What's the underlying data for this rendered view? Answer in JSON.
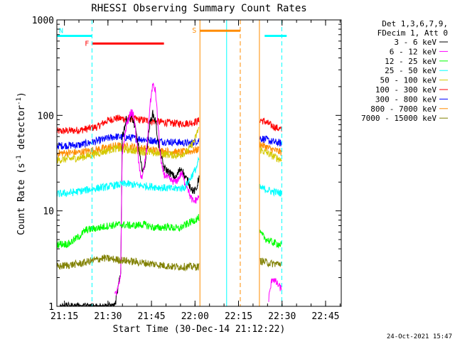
{
  "chart_data": {
    "type": "line",
    "title": "RHESSI Observing Summary Count Rates",
    "xlabel": "Start Time (30-Dec-14 21:12:22)",
    "ylabel": "Count Rate (s",
    "ylabel_sup1": "-1",
    "ylabel_mid": " detector",
    "ylabel_sup2": "-1",
    "ylabel_end": ")",
    "y_scale": "log",
    "ylim": [
      1,
      1000
    ],
    "xlim_minutes": [
      0,
      98
    ],
    "x_ticks": [
      {
        "minute": 2.6,
        "label": "21:15"
      },
      {
        "minute": 17.6,
        "label": "21:30"
      },
      {
        "minute": 32.6,
        "label": "21:45"
      },
      {
        "minute": 47.6,
        "label": "22:00"
      },
      {
        "minute": 62.6,
        "label": "22:15"
      },
      {
        "minute": 77.6,
        "label": "22:30"
      },
      {
        "minute": 92.6,
        "label": "22:45"
      }
    ],
    "y_ticks": [
      {
        "value": 1,
        "label": "1"
      },
      {
        "value": 10,
        "label": "10"
      },
      {
        "value": 100,
        "label": "100"
      },
      {
        "value": 1000,
        "label": "1000"
      }
    ],
    "legend_header": [
      "Det 1,3,6,7,9,",
      "FDecim 1, Att 0"
    ],
    "series": [
      {
        "name": "3 - 6 keV",
        "color": "#000000"
      },
      {
        "name": "6 - 12 keV",
        "color": "#ff00ff"
      },
      {
        "name": "12 - 25 keV",
        "color": "#00ff00"
      },
      {
        "name": "25 - 50 keV",
        "color": "#00ffff"
      },
      {
        "name": "50 - 100 keV",
        "color": "#d4c800"
      },
      {
        "name": "100 - 300 keV",
        "color": "#ff0000"
      },
      {
        "name": "300 - 800 keV",
        "color": "#0000ff"
      },
      {
        "name": "800 - 7000 keV",
        "color": "#ff8c00"
      },
      {
        "name": "7000 - 15000 keV",
        "color": "#808000"
      }
    ],
    "segments": [
      {
        "start": 0,
        "end": 49.3
      },
      {
        "start": 69.8,
        "end": 77.5
      }
    ],
    "series_curves": {
      "100 - 300 keV": [
        [
          [
            0,
            68
          ],
          [
            8,
            70
          ],
          [
            14,
            76
          ],
          [
            17,
            87
          ],
          [
            20,
            93
          ],
          [
            26,
            92
          ],
          [
            34,
            86
          ],
          [
            42,
            82
          ],
          [
            46,
            83
          ],
          [
            49,
            88
          ]
        ],
        [
          [
            70,
            90
          ],
          [
            72,
            85
          ],
          [
            74,
            78
          ],
          [
            77.5,
            70
          ]
        ]
      ],
      "300 - 800 keV": [
        [
          [
            0,
            48
          ],
          [
            8,
            49
          ],
          [
            14,
            54
          ],
          [
            20,
            60
          ],
          [
            26,
            58
          ],
          [
            34,
            54
          ],
          [
            42,
            52
          ],
          [
            46,
            51
          ],
          [
            49,
            55
          ]
        ],
        [
          [
            70,
            58
          ],
          [
            72,
            56
          ],
          [
            74,
            53
          ],
          [
            77.5,
            51
          ]
        ]
      ],
      "800 - 7000 keV": [
        [
          [
            0,
            40
          ],
          [
            8,
            41
          ],
          [
            14,
            44
          ],
          [
            20,
            48
          ],
          [
            26,
            47
          ],
          [
            34,
            43
          ],
          [
            42,
            41
          ],
          [
            46,
            42
          ],
          [
            49,
            44
          ]
        ],
        [
          [
            70,
            50
          ],
          [
            72,
            47
          ],
          [
            74,
            44
          ],
          [
            77.5,
            41
          ]
        ]
      ],
      "50 - 100 keV": [
        [
          [
            0,
            34
          ],
          [
            8,
            36
          ],
          [
            14,
            40
          ],
          [
            20,
            45
          ],
          [
            26,
            43
          ],
          [
            34,
            40
          ],
          [
            42,
            38
          ],
          [
            45,
            42
          ],
          [
            47.5,
            55
          ],
          [
            49,
            76
          ]
        ],
        [
          [
            70,
            44
          ],
          [
            72,
            41
          ],
          [
            74,
            38
          ],
          [
            77.5,
            34
          ]
        ]
      ],
      "3 - 6 keV": [
        [
          [
            1,
            1
          ],
          [
            20,
            1
          ],
          [
            21,
            1.5
          ],
          [
            22,
            2.2
          ],
          [
            22.5,
            60
          ],
          [
            24,
            92
          ],
          [
            26,
            95
          ],
          [
            27,
            72
          ],
          [
            28,
            50
          ],
          [
            29,
            30
          ],
          [
            30,
            26
          ],
          [
            31,
            45
          ],
          [
            32,
            80
          ],
          [
            33,
            105
          ],
          [
            34,
            88
          ],
          [
            35,
            50
          ],
          [
            36,
            36
          ],
          [
            37,
            28
          ],
          [
            39,
            25
          ],
          [
            41,
            22
          ],
          [
            42,
            26
          ],
          [
            43,
            28
          ],
          [
            44,
            23
          ],
          [
            45,
            21
          ],
          [
            46,
            18
          ],
          [
            47,
            16
          ],
          [
            48,
            16.5
          ],
          [
            49,
            23
          ]
        ]
      ],
      "6 - 12 keV": [
        [
          [
            20,
            1.3
          ],
          [
            21,
            1.5
          ],
          [
            22,
            2
          ],
          [
            22.5,
            40
          ],
          [
            24,
            80
          ],
          [
            25.5,
            108
          ],
          [
            26.5,
            100
          ],
          [
            27.5,
            55
          ],
          [
            28.5,
            26
          ],
          [
            29.5,
            22
          ],
          [
            31,
            45
          ],
          [
            32,
            120
          ],
          [
            33,
            210
          ],
          [
            34,
            180
          ],
          [
            35,
            70
          ],
          [
            36,
            30
          ],
          [
            37,
            24
          ],
          [
            39,
            21
          ],
          [
            41,
            20
          ],
          [
            42,
            22
          ],
          [
            43,
            25
          ],
          [
            44,
            20
          ],
          [
            45,
            18
          ],
          [
            46,
            14
          ],
          [
            47,
            12.5
          ],
          [
            48,
            13
          ],
          [
            49,
            14
          ]
        ],
        [
          [
            73,
            1.2
          ],
          [
            74.2,
            2
          ],
          [
            77.5,
            1.5
          ]
        ]
      ],
      "25 - 50 keV": [
        [
          [
            0,
            15
          ],
          [
            5,
            15.5
          ],
          [
            10,
            16.5
          ],
          [
            15,
            17.5
          ],
          [
            17,
            17.8
          ],
          [
            20,
            18.5
          ],
          [
            22.5,
            19
          ],
          [
            24,
            19.2
          ],
          [
            28,
            18.5
          ],
          [
            34,
            17.8
          ],
          [
            40,
            17
          ],
          [
            44,
            17.5
          ],
          [
            46,
            22
          ],
          [
            48,
            28
          ],
          [
            49,
            35
          ]
        ],
        [
          [
            70,
            17.5
          ],
          [
            72,
            16.8
          ],
          [
            74,
            16
          ],
          [
            77.5,
            15.3
          ]
        ]
      ],
      "12 - 25 keV": [
        [
          [
            0,
            4.5
          ],
          [
            4,
            4.5
          ],
          [
            8,
            5.5
          ],
          [
            10,
            6.3
          ],
          [
            14,
            6.6
          ],
          [
            18,
            7
          ],
          [
            22,
            7.2
          ],
          [
            26,
            7
          ],
          [
            30,
            7.2
          ],
          [
            34,
            6.6
          ],
          [
            38,
            6.8
          ],
          [
            42,
            6.5
          ],
          [
            46,
            7.6
          ],
          [
            49,
            8.5
          ]
        ],
        [
          [
            70,
            5.8
          ],
          [
            72,
            5.1
          ],
          [
            74,
            4.7
          ],
          [
            77.5,
            4.4
          ]
        ]
      ],
      "7000 - 15000 keV": [
        [
          [
            0,
            2.6
          ],
          [
            4,
            2.7
          ],
          [
            8,
            2.8
          ],
          [
            12,
            3
          ],
          [
            16,
            3.2
          ],
          [
            20,
            3.1
          ],
          [
            24,
            3
          ],
          [
            28,
            2.9
          ],
          [
            32,
            2.8
          ],
          [
            36,
            2.7
          ],
          [
            40,
            2.6
          ],
          [
            44,
            2.6
          ],
          [
            49,
            2.6
          ]
        ],
        [
          [
            70,
            3
          ],
          [
            72,
            2.9
          ],
          [
            74,
            2.8
          ],
          [
            77.5,
            2.8
          ]
        ]
      ]
    },
    "att_bars": [
      {
        "label": "N",
        "start": 0,
        "end": 12.1,
        "value": 680,
        "color": "#00ffff"
      },
      {
        "label": "F",
        "start": 12.3,
        "end": 36.9,
        "value": 565,
        "color": "#ff0000"
      },
      {
        "label": "S",
        "start": 49.3,
        "end": 63.2,
        "value": 770,
        "color": "#ff8c00"
      },
      {
        "label": "",
        "start": 71.6,
        "end": 79.2,
        "value": 680,
        "color": "#00ffff"
      }
    ],
    "vlines": [
      {
        "minute": 0,
        "color": "#00ffff",
        "dashed": false
      },
      {
        "minute": 12.1,
        "color": "#00ffff",
        "dashed": true
      },
      {
        "minute": 49.3,
        "color": "#ff8c00",
        "dashed": false
      },
      {
        "minute": 58.5,
        "color": "#00ffff",
        "dashed": false
      },
      {
        "minute": 63.2,
        "color": "#ff8c00",
        "dashed": true
      },
      {
        "minute": 69.8,
        "color": "#ff8c00",
        "dashed": false
      },
      {
        "minute": 77.5,
        "color": "#00ffff",
        "dashed": true
      }
    ],
    "footer_timestamp": "24-Oct-2021 15:47"
  }
}
